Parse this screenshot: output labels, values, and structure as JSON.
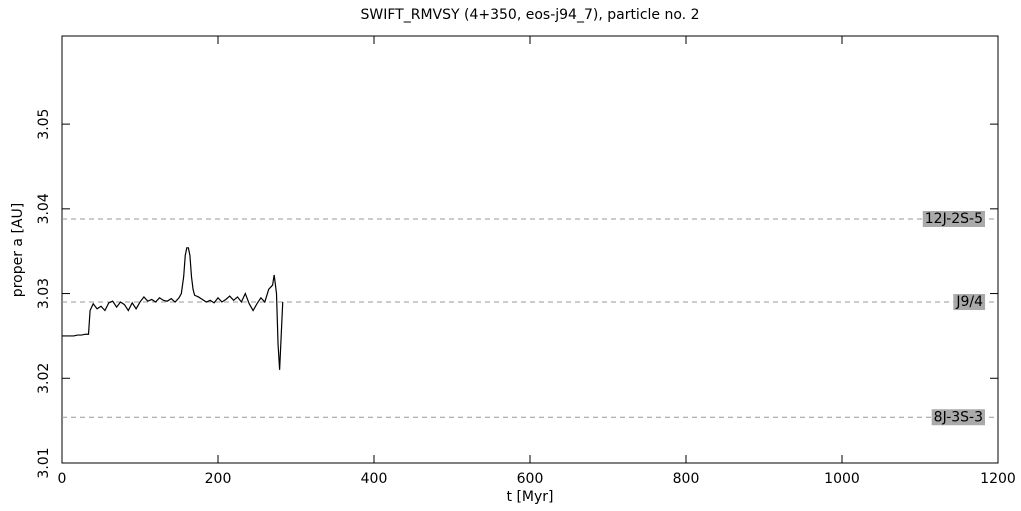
{
  "chart_data": {
    "type": "line",
    "title": "SWIFT_RMVSY (4+350, eos-j94_7), particle no. 2",
    "x_label": "t [Myr]",
    "y_label": "proper a [AU]",
    "xlim": [
      0,
      1200
    ],
    "xticks": [
      0,
      200,
      400,
      600,
      800,
      1000,
      1200
    ],
    "ylim": [
      3.01,
      3.0604
    ],
    "yticks": [
      3.01,
      3.02,
      3.03,
      3.04,
      3.05
    ],
    "grid": false,
    "color": "#000000",
    "x": [
      0,
      5,
      10,
      15,
      20,
      25,
      30,
      34,
      36,
      40,
      45,
      50,
      55,
      60,
      65,
      70,
      75,
      80,
      85,
      90,
      95,
      100,
      105,
      110,
      115,
      120,
      125,
      130,
      135,
      140,
      145,
      150,
      153,
      156,
      158,
      160,
      162,
      164,
      166,
      168,
      170,
      175,
      180,
      185,
      190,
      195,
      200,
      205,
      210,
      215,
      220,
      225,
      230,
      235,
      240,
      245,
      250,
      255,
      260,
      265,
      270,
      272,
      275,
      277,
      279,
      281,
      283
    ],
    "values": [
      3.025,
      3.025,
      3.025,
      3.025,
      3.0251,
      3.0251,
      3.0252,
      3.0252,
      3.028,
      3.0288,
      3.0282,
      3.0285,
      3.028,
      3.0289,
      3.0291,
      3.0284,
      3.029,
      3.0287,
      3.028,
      3.0289,
      3.0282,
      3.029,
      3.0296,
      3.0291,
      3.0293,
      3.029,
      3.0295,
      3.0292,
      3.0291,
      3.0294,
      3.029,
      3.0295,
      3.03,
      3.032,
      3.0345,
      3.0354,
      3.0354,
      3.0345,
      3.032,
      3.0305,
      3.0298,
      3.0296,
      3.0293,
      3.029,
      3.0292,
      3.0289,
      3.0295,
      3.029,
      3.0293,
      3.0297,
      3.0292,
      3.0296,
      3.029,
      3.03,
      3.0288,
      3.028,
      3.0288,
      3.0295,
      3.029,
      3.0305,
      3.031,
      3.0322,
      3.03,
      3.024,
      3.021,
      3.025,
      3.029
    ],
    "resonances": [
      {
        "label": "12J-2S-5",
        "value": 3.0388
      },
      {
        "label": "J9/4",
        "value": 3.029
      },
      {
        "label": "8J-3S-3",
        "value": 3.0154
      }
    ]
  }
}
